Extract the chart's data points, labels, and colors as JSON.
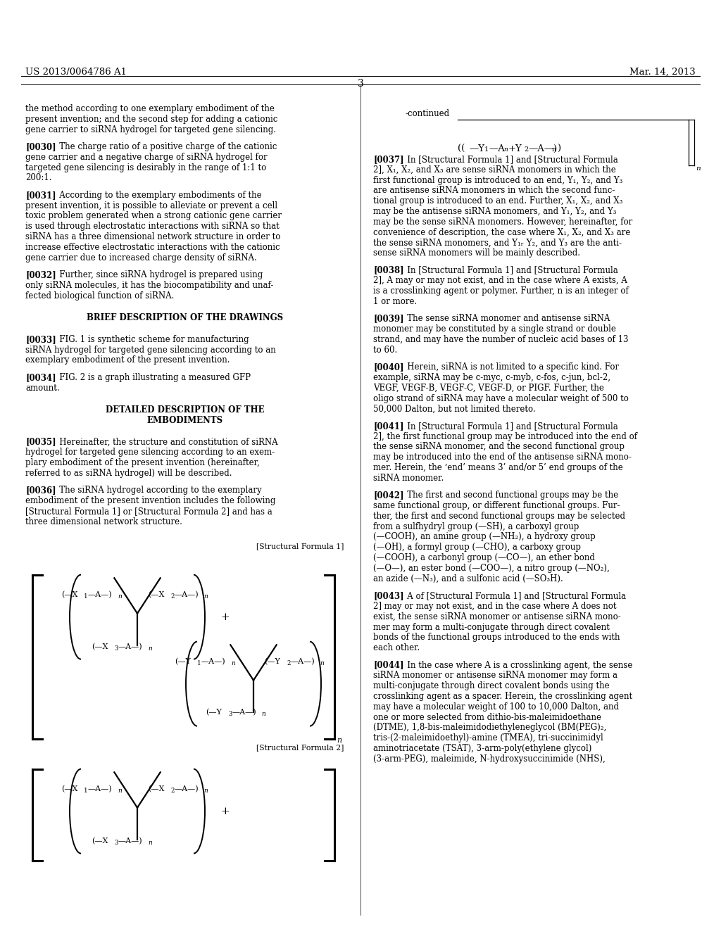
{
  "page_number": "3",
  "patent_number": "US 2013/0064786 A1",
  "patent_date": "Mar. 14, 2013",
  "background_color": "#ffffff",
  "text_color": "#000000"
}
